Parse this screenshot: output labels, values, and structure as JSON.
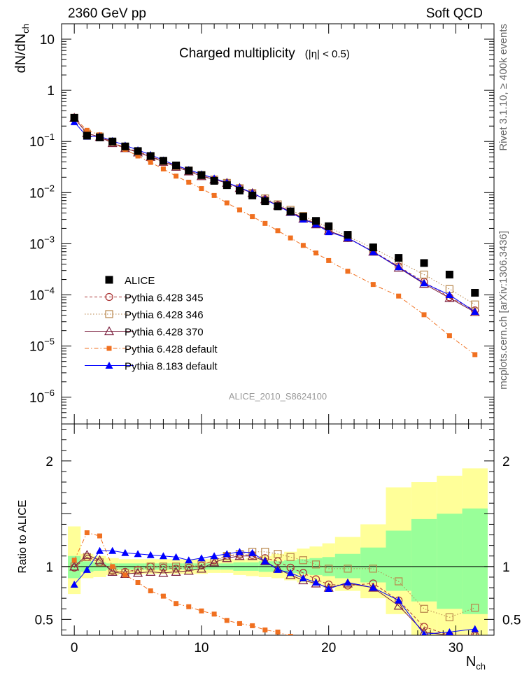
{
  "header": {
    "energy_label": "2360 GeV pp",
    "category_label": "Soft QCD"
  },
  "side_labels": {
    "rivet": "Rivet 3.1.10, ≥ 400k events",
    "source": "mcplots.cern.ch [arXiv:1306.3436]"
  },
  "chart_data": [
    {
      "type": "scatter",
      "panel": "main",
      "title": "Charged multiplicity",
      "title_suffix": "(|η| < 0.5)",
      "watermark": "ALICE_2010_S8624100",
      "ylabel": "dN/dN",
      "ylabel_sub": "ch",
      "xlabel": "N",
      "xlabel_sub": "ch",
      "yscale": "log",
      "xlim": [
        -1,
        33
      ],
      "ylim": [
        3e-07,
        20
      ],
      "y_ticks": [
        {
          "v": 1e-06,
          "base": "10",
          "exp": "−6"
        },
        {
          "v": 1e-05,
          "base": "10",
          "exp": "−5"
        },
        {
          "v": 0.0001,
          "base": "10",
          "exp": "−4"
        },
        {
          "v": 0.001,
          "base": "10",
          "exp": "−3"
        },
        {
          "v": 0.01,
          "base": "10",
          "exp": "−2"
        },
        {
          "v": 0.1,
          "base": "10",
          "exp": "−1"
        },
        {
          "v": 1,
          "base": "1",
          "exp": ""
        },
        {
          "v": 10,
          "base": "10",
          "exp": ""
        }
      ],
      "legend_position": "lower-left",
      "series": [
        {
          "name": "ALICE",
          "style": "data",
          "color": "#000000",
          "marker": "square-filled",
          "x": [
            0,
            1,
            2,
            3,
            4,
            5,
            6,
            7,
            8,
            9,
            10,
            11,
            12,
            13,
            14,
            15,
            16,
            17,
            18,
            19,
            20,
            21.5,
            23.5,
            25.5,
            27.5,
            29.5,
            31.5
          ],
          "y": [
            0.29,
            0.13,
            0.12,
            0.1,
            0.08,
            0.065,
            0.052,
            0.042,
            0.034,
            0.027,
            0.022,
            0.017,
            0.014,
            0.011,
            0.0088,
            0.0068,
            0.0054,
            0.0043,
            0.0034,
            0.0028,
            0.0022,
            0.0015,
            0.00085,
            0.00053,
            0.00042,
            0.00025,
            0.00011
          ]
        },
        {
          "name": "Pythia 6.428 345",
          "style": "dashed",
          "color": "#aa3333",
          "marker": "circle-open",
          "x": [
            0,
            1,
            2,
            3,
            4,
            5,
            6,
            7,
            8,
            9,
            10,
            11,
            12,
            13,
            14,
            15,
            16,
            17,
            18,
            19,
            20,
            21.5,
            23.5,
            25.5,
            27.5,
            29.5,
            31.5
          ],
          "y": [
            0.29,
            0.142,
            0.125,
            0.095,
            0.076,
            0.063,
            0.052,
            0.041,
            0.033,
            0.027,
            0.022,
            0.018,
            0.0155,
            0.0122,
            0.0098,
            0.0074,
            0.0057,
            0.0043,
            0.0032,
            0.0025,
            0.0018,
            0.0013,
            0.00071,
            0.00036,
            0.00018,
            9e-05,
            5e-05
          ]
        },
        {
          "name": "Pythia 6.428 346",
          "style": "dotted",
          "color": "#b8864b",
          "marker": "square-open",
          "x": [
            0,
            1,
            2,
            3,
            4,
            5,
            6,
            7,
            8,
            9,
            10,
            11,
            12,
            13,
            14,
            15,
            16,
            17,
            18,
            19,
            20,
            21.5,
            23.5,
            25.5,
            27.5,
            29.5,
            31.5
          ],
          "y": [
            0.29,
            0.142,
            0.125,
            0.095,
            0.075,
            0.062,
            0.051,
            0.041,
            0.033,
            0.027,
            0.022,
            0.018,
            0.0155,
            0.0122,
            0.0098,
            0.0077,
            0.0059,
            0.0046,
            0.0035,
            0.0027,
            0.0021,
            0.0014,
            0.00082,
            0.00045,
            0.00025,
            0.00013,
            6.5e-05
          ]
        },
        {
          "name": "Pythia 6.428 370",
          "style": "solid",
          "color": "#7a1f3d",
          "marker": "triangle-open",
          "x": [
            0,
            1,
            2,
            3,
            4,
            5,
            6,
            7,
            8,
            9,
            10,
            11,
            12,
            13,
            14,
            15,
            16,
            17,
            18,
            19,
            20,
            21.5,
            23.5,
            25.5,
            27.5,
            29.5,
            31.5
          ],
          "y": [
            0.29,
            0.145,
            0.122,
            0.093,
            0.074,
            0.061,
            0.05,
            0.04,
            0.032,
            0.026,
            0.021,
            0.018,
            0.0155,
            0.0123,
            0.0098,
            0.0074,
            0.0056,
            0.0042,
            0.0031,
            0.0024,
            0.0018,
            0.0013,
            0.0007,
            0.00034,
            0.000165,
            8.7e-05,
            4.6e-05
          ]
        },
        {
          "name": "Pythia 6.428 default",
          "style": "dashdot",
          "color": "#f07020",
          "marker": "square-filled-small",
          "x": [
            0,
            1,
            2,
            3,
            4,
            5,
            6,
            7,
            8,
            9,
            10,
            11,
            12,
            13,
            14,
            15,
            16,
            17,
            18,
            19,
            20,
            21.5,
            23.5,
            25.5,
            27.5,
            29.5,
            31.5
          ],
          "y": [
            0.29,
            0.165,
            0.135,
            0.095,
            0.07,
            0.052,
            0.039,
            0.029,
            0.021,
            0.016,
            0.012,
            0.0088,
            0.0063,
            0.0046,
            0.0034,
            0.0025,
            0.0018,
            0.0013,
            0.00093,
            0.00066,
            0.00047,
            0.00029,
            0.00016,
            9.5e-05,
            4.1e-05,
            1.6e-05,
            6.8e-06
          ]
        },
        {
          "name": "Pythia 8.183 default",
          "style": "solid",
          "color": "#0000ff",
          "marker": "triangle-filled",
          "x": [
            0,
            1,
            2,
            3,
            4,
            5,
            6,
            7,
            8,
            9,
            10,
            11,
            12,
            13,
            14,
            15,
            16,
            17,
            18,
            19,
            20,
            21.5,
            23.5,
            25.5,
            27.5,
            29.5,
            31.5
          ],
          "y": [
            0.24,
            0.125,
            0.126,
            0.103,
            0.084,
            0.068,
            0.055,
            0.043,
            0.034,
            0.028,
            0.023,
            0.019,
            0.0157,
            0.0126,
            0.0099,
            0.0074,
            0.0055,
            0.0041,
            0.003,
            0.0024,
            0.0017,
            0.0013,
            0.00069,
            0.00035,
            0.00017,
            0.0001,
            4.7e-05
          ]
        }
      ]
    },
    {
      "type": "scatter",
      "panel": "ratio",
      "ylabel": "Ratio to ALICE",
      "xlabel": "N",
      "xlabel_sub": "ch",
      "xlim": [
        -1,
        33
      ],
      "ylim": [
        0.35,
        2.35
      ],
      "x_ticks": [
        0,
        10,
        20,
        30
      ],
      "y_ticks": [
        0.5,
        1,
        2
      ],
      "bands": {
        "x": [
          [
            -0.5,
            0.5
          ],
          [
            0.5,
            1.5
          ],
          [
            1.5,
            2.5
          ],
          [
            2.5,
            3.5
          ],
          [
            3.5,
            4.5
          ],
          [
            4.5,
            5.5
          ],
          [
            5.5,
            6.5
          ],
          [
            6.5,
            7.5
          ],
          [
            7.5,
            8.5
          ],
          [
            8.5,
            9.5
          ],
          [
            9.5,
            10.5
          ],
          [
            10.5,
            11.5
          ],
          [
            11.5,
            12.5
          ],
          [
            12.5,
            13.5
          ],
          [
            13.5,
            14.5
          ],
          [
            14.5,
            15.5
          ],
          [
            15.5,
            16.5
          ],
          [
            16.5,
            17.5
          ],
          [
            17.5,
            18.5
          ],
          [
            18.5,
            19.5
          ],
          [
            19.5,
            20.5
          ],
          [
            20.5,
            22.5
          ],
          [
            22.5,
            24.5
          ],
          [
            24.5,
            26.5
          ],
          [
            26.5,
            28.5
          ],
          [
            28.5,
            30.5
          ],
          [
            30.5,
            32.5
          ]
        ],
        "stat_sys_yellow": [
          [
            0.74,
            1.38
          ],
          [
            0.89,
            1.12
          ],
          [
            0.9,
            1.1
          ],
          [
            0.92,
            1.08
          ],
          [
            0.93,
            1.07
          ],
          [
            0.93,
            1.07
          ],
          [
            0.93,
            1.07
          ],
          [
            0.93,
            1.07
          ],
          [
            0.93,
            1.07
          ],
          [
            0.93,
            1.07
          ],
          [
            0.93,
            1.07
          ],
          [
            0.94,
            1.07
          ],
          [
            0.94,
            1.07
          ],
          [
            0.92,
            1.07
          ],
          [
            0.91,
            1.08
          ],
          [
            0.9,
            1.1
          ],
          [
            0.89,
            1.12
          ],
          [
            0.87,
            1.14
          ],
          [
            0.85,
            1.17
          ],
          [
            0.83,
            1.19
          ],
          [
            0.8,
            1.22
          ],
          [
            0.77,
            1.28
          ],
          [
            0.7,
            1.4
          ],
          [
            0.55,
            1.75
          ],
          [
            0.35,
            1.8
          ],
          [
            0.35,
            1.86
          ],
          [
            0.35,
            1.93
          ]
        ],
        "sys_green": [
          [
            0.89,
            1.1
          ],
          [
            0.95,
            1.05
          ],
          [
            0.96,
            1.04
          ],
          [
            0.97,
            1.03
          ],
          [
            0.97,
            1.03
          ],
          [
            0.97,
            1.03
          ],
          [
            0.97,
            1.03
          ],
          [
            0.97,
            1.03
          ],
          [
            0.97,
            1.03
          ],
          [
            0.97,
            1.03
          ],
          [
            0.97,
            1.03
          ],
          [
            0.97,
            1.03
          ],
          [
            0.97,
            1.03
          ],
          [
            0.96,
            1.04
          ],
          [
            0.96,
            1.04
          ],
          [
            0.95,
            1.05
          ],
          [
            0.95,
            1.05
          ],
          [
            0.94,
            1.06
          ],
          [
            0.93,
            1.07
          ],
          [
            0.92,
            1.08
          ],
          [
            0.91,
            1.09
          ],
          [
            0.89,
            1.12
          ],
          [
            0.85,
            1.18
          ],
          [
            0.77,
            1.34
          ],
          [
            0.67,
            1.45
          ],
          [
            0.6,
            1.5
          ],
          [
            0.55,
            1.55
          ]
        ]
      },
      "series": [
        {
          "name": "Pythia 6.428 345",
          "style": "dashed",
          "color": "#aa3333",
          "marker": "circle-open",
          "x": [
            0,
            1,
            2,
            3,
            4,
            5,
            6,
            7,
            8,
            9,
            10,
            11,
            12,
            13,
            14,
            15,
            16,
            17,
            18,
            19,
            20,
            21.5,
            23.5,
            25.5,
            27.5,
            29.5,
            31.5
          ],
          "y": [
            0.99,
            1.09,
            1.04,
            0.96,
            0.95,
            0.97,
            1.0,
            0.99,
            0.98,
            0.99,
            1.01,
            1.06,
            1.1,
            1.11,
            1.11,
            1.08,
            1.05,
            0.99,
            0.94,
            0.88,
            0.83,
            0.82,
            0.84,
            0.68,
            0.43,
            0.35,
            0.35
          ]
        },
        {
          "name": "Pythia 6.428 346",
          "style": "dotted",
          "color": "#b8864b",
          "marker": "square-open",
          "x": [
            0,
            1,
            2,
            3,
            4,
            5,
            6,
            7,
            8,
            9,
            10,
            11,
            12,
            13,
            14,
            15,
            16,
            17,
            18,
            19,
            20,
            21.5,
            23.5,
            25.5,
            27.5,
            29.5,
            31.5
          ],
          "y": [
            1.0,
            1.09,
            1.04,
            0.97,
            0.94,
            0.96,
            1.0,
            1.0,
            1.0,
            1.0,
            1.02,
            1.05,
            1.1,
            1.12,
            1.14,
            1.14,
            1.12,
            1.09,
            1.06,
            1.02,
            0.98,
            0.98,
            0.98,
            0.86,
            0.6,
            0.52,
            0.61
          ]
        },
        {
          "name": "Pythia 6.428 370",
          "style": "solid",
          "color": "#7a1f3d",
          "marker": "triangle-open",
          "x": [
            0,
            1,
            2,
            3,
            4,
            5,
            6,
            7,
            8,
            9,
            10,
            11,
            12,
            13,
            14,
            15,
            16,
            17,
            18,
            19,
            20,
            21.5,
            23.5,
            25.5,
            27.5,
            29.5,
            31.5
          ],
          "y": [
            1.0,
            1.11,
            1.06,
            0.95,
            0.93,
            0.94,
            0.95,
            0.94,
            0.95,
            0.96,
            0.98,
            1.04,
            1.08,
            1.1,
            1.1,
            1.05,
            0.98,
            0.92,
            0.87,
            0.84,
            0.8,
            0.84,
            0.8,
            0.63,
            0.38,
            0.35,
            0.35
          ]
        },
        {
          "name": "Pythia 6.428 default",
          "style": "dashdot",
          "color": "#f07020",
          "marker": "square-filled-small",
          "x": [
            0,
            1,
            2,
            3,
            4,
            5,
            6,
            7,
            8,
            9,
            10,
            11,
            12,
            13,
            14,
            15,
            16,
            17
          ],
          "y": [
            1.06,
            1.32,
            1.29,
            1.0,
            0.92,
            0.85,
            0.77,
            0.72,
            0.65,
            0.62,
            0.58,
            0.55,
            0.49,
            0.46,
            0.44,
            0.4,
            0.38,
            0.34
          ]
        },
        {
          "name": "Pythia 8.183 default",
          "style": "solid",
          "color": "#0000ff",
          "marker": "triangle-filled",
          "x": [
            0,
            1,
            2,
            3,
            4,
            5,
            6,
            7,
            8,
            9,
            10,
            11,
            12,
            13,
            14,
            15,
            16,
            17,
            18,
            19,
            20,
            21.5,
            23.5,
            25.5,
            27.5,
            29.5,
            31.5
          ],
          "y": [
            0.83,
            0.97,
            1.15,
            1.15,
            1.13,
            1.12,
            1.11,
            1.1,
            1.09,
            1.06,
            1.08,
            1.1,
            1.12,
            1.14,
            1.13,
            1.05,
            0.97,
            0.94,
            0.89,
            0.85,
            0.79,
            0.85,
            0.8,
            0.68,
            0.36,
            0.38,
            0.41
          ]
        }
      ]
    }
  ]
}
